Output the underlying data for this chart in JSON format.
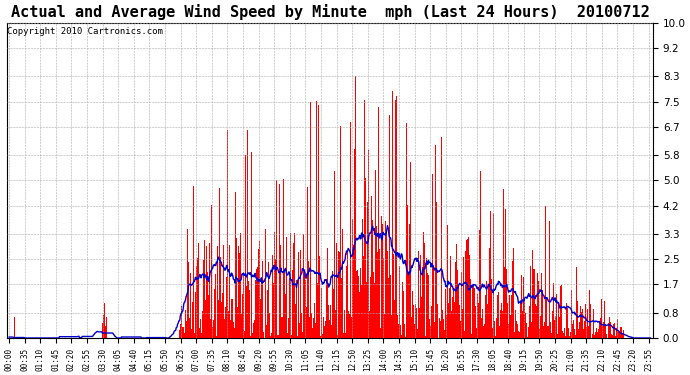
{
  "title": "Actual and Average Wind Speed by Minute  mph (Last 24 Hours)  20100712",
  "copyright": "Copyright 2010 Cartronics.com",
  "yticks": [
    0.0,
    0.8,
    1.7,
    2.5,
    3.3,
    4.2,
    5.0,
    5.8,
    6.7,
    7.5,
    8.3,
    9.2,
    10.0
  ],
  "ylim": [
    0.0,
    10.0
  ],
  "bar_color": "#ff0000",
  "line_color": "#0000cc",
  "background_color": "#ffffff",
  "grid_color": "#aaaaaa",
  "title_fontsize": 11,
  "copyright_fontsize": 6.5,
  "xtick_fontsize": 5.5,
  "ytick_fontsize": 7.5,
  "tick_step_minutes": 35
}
